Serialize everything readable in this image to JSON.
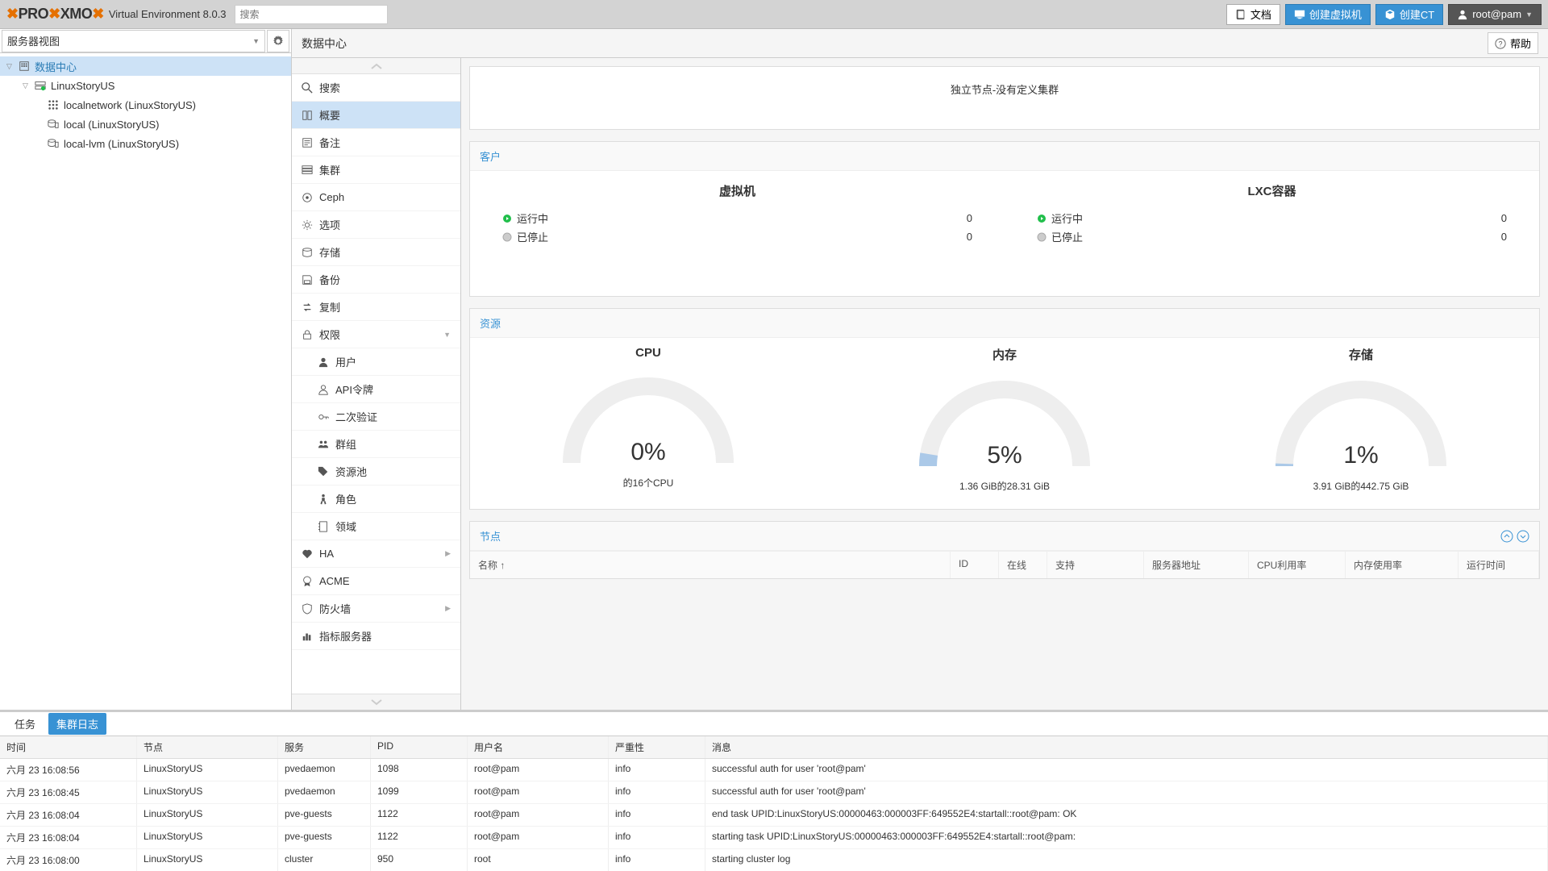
{
  "header": {
    "brand_left": "PRO",
    "brand_mid": "XMO",
    "version": "Virtual Environment 8.0.3",
    "search_placeholder": "搜索",
    "docs": "文档",
    "create_vm": "创建虚拟机",
    "create_ct": "创建CT",
    "user": "root@pam"
  },
  "left": {
    "view_label": "服务器视图",
    "datacenter": "数据中心",
    "node": "LinuxStoryUS",
    "items": [
      "localnetwork (LinuxStoryUS)",
      "local (LinuxStoryUS)",
      "local-lvm (LinuxStoryUS)"
    ]
  },
  "content": {
    "title": "数据中心",
    "help": "帮助",
    "menu": {
      "search": "搜索",
      "summary": "概要",
      "notes": "备注",
      "cluster": "集群",
      "ceph": "Ceph",
      "options": "选项",
      "storage": "存储",
      "backup": "备份",
      "replication": "复制",
      "permissions": "权限",
      "users": "用户",
      "api_tokens": "API令牌",
      "tfa": "二次验证",
      "groups": "群组",
      "pools": "资源池",
      "roles": "角色",
      "realms": "领域",
      "ha": "HA",
      "acme": "ACME",
      "firewall": "防火墙",
      "metrics": "指标服务器"
    }
  },
  "summary": {
    "standalone": "独立节点-没有定义集群",
    "guests_title": "客户",
    "vm_title": "虚拟机",
    "lxc_title": "LXC容器",
    "running": "运行中",
    "stopped": "已停止",
    "vm_running": "0",
    "vm_stopped": "0",
    "lxc_running": "0",
    "lxc_stopped": "0",
    "resources_title": "资源",
    "cpu": {
      "label": "CPU",
      "pct": "0%",
      "sub": "的16个CPU",
      "value": 0
    },
    "mem": {
      "label": "内存",
      "pct": "5%",
      "sub": "1.36 GiB的28.31 GiB",
      "value": 5
    },
    "storage": {
      "label": "存储",
      "pct": "1%",
      "sub": "3.91 GiB的442.75 GiB",
      "value": 1
    },
    "nodes_title": "节点",
    "node_cols": {
      "name": "名称 ↑",
      "id": "ID",
      "online": "在线",
      "support": "支持",
      "addr": "服务器地址",
      "cpu": "CPU利用率",
      "mem": "内存使用率",
      "uptime": "运行时间"
    }
  },
  "log": {
    "tab_tasks": "任务",
    "tab_cluster": "集群日志",
    "cols": {
      "time": "时间",
      "node": "节点",
      "service": "服务",
      "pid": "PID",
      "user": "用户名",
      "sev": "严重性",
      "msg": "消息"
    },
    "rows": [
      {
        "time": "六月 23 16:08:56",
        "node": "LinuxStoryUS",
        "svc": "pvedaemon",
        "pid": "1098",
        "user": "root@pam",
        "sev": "info",
        "msg": "successful auth for user 'root@pam'"
      },
      {
        "time": "六月 23 16:08:45",
        "node": "LinuxStoryUS",
        "svc": "pvedaemon",
        "pid": "1099",
        "user": "root@pam",
        "sev": "info",
        "msg": "successful auth for user 'root@pam'"
      },
      {
        "time": "六月 23 16:08:04",
        "node": "LinuxStoryUS",
        "svc": "pve-guests",
        "pid": "1122",
        "user": "root@pam",
        "sev": "info",
        "msg": "end task UPID:LinuxStoryUS:00000463:000003FF:649552E4:startall::root@pam: OK"
      },
      {
        "time": "六月 23 16:08:04",
        "node": "LinuxStoryUS",
        "svc": "pve-guests",
        "pid": "1122",
        "user": "root@pam",
        "sev": "info",
        "msg": "starting task UPID:LinuxStoryUS:00000463:000003FF:649552E4:startall::root@pam:"
      },
      {
        "time": "六月 23 16:08:00",
        "node": "LinuxStoryUS",
        "svc": "cluster",
        "pid": "950",
        "user": "root",
        "sev": "info",
        "msg": "starting cluster log"
      }
    ]
  },
  "colors": {
    "accent": "#3892d4",
    "gauge_track": "#eeeeee",
    "gauge_fill": "#abc9e8"
  }
}
